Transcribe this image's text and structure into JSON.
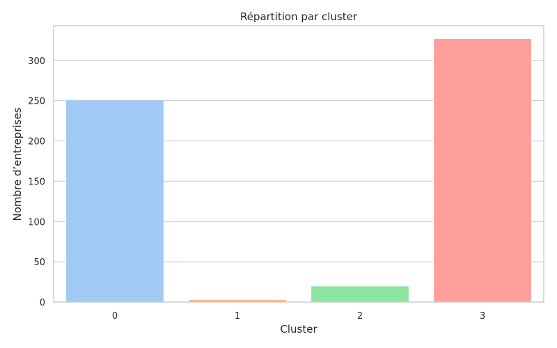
{
  "chart_data": {
    "type": "bar",
    "title": "Répartition par cluster",
    "xlabel": "Cluster",
    "ylabel": "Nombre d’entreprises",
    "categories": [
      "0",
      "1",
      "2",
      "3"
    ],
    "values": [
      251,
      3,
      20,
      327
    ],
    "colors": [
      "#a1c9f4",
      "#ffb482",
      "#8de5a1",
      "#ff9f9b"
    ],
    "ylim": [
      0,
      343
    ],
    "yticks": [
      0,
      50,
      100,
      150,
      200,
      250,
      300
    ],
    "grid": true,
    "legend": "none"
  }
}
